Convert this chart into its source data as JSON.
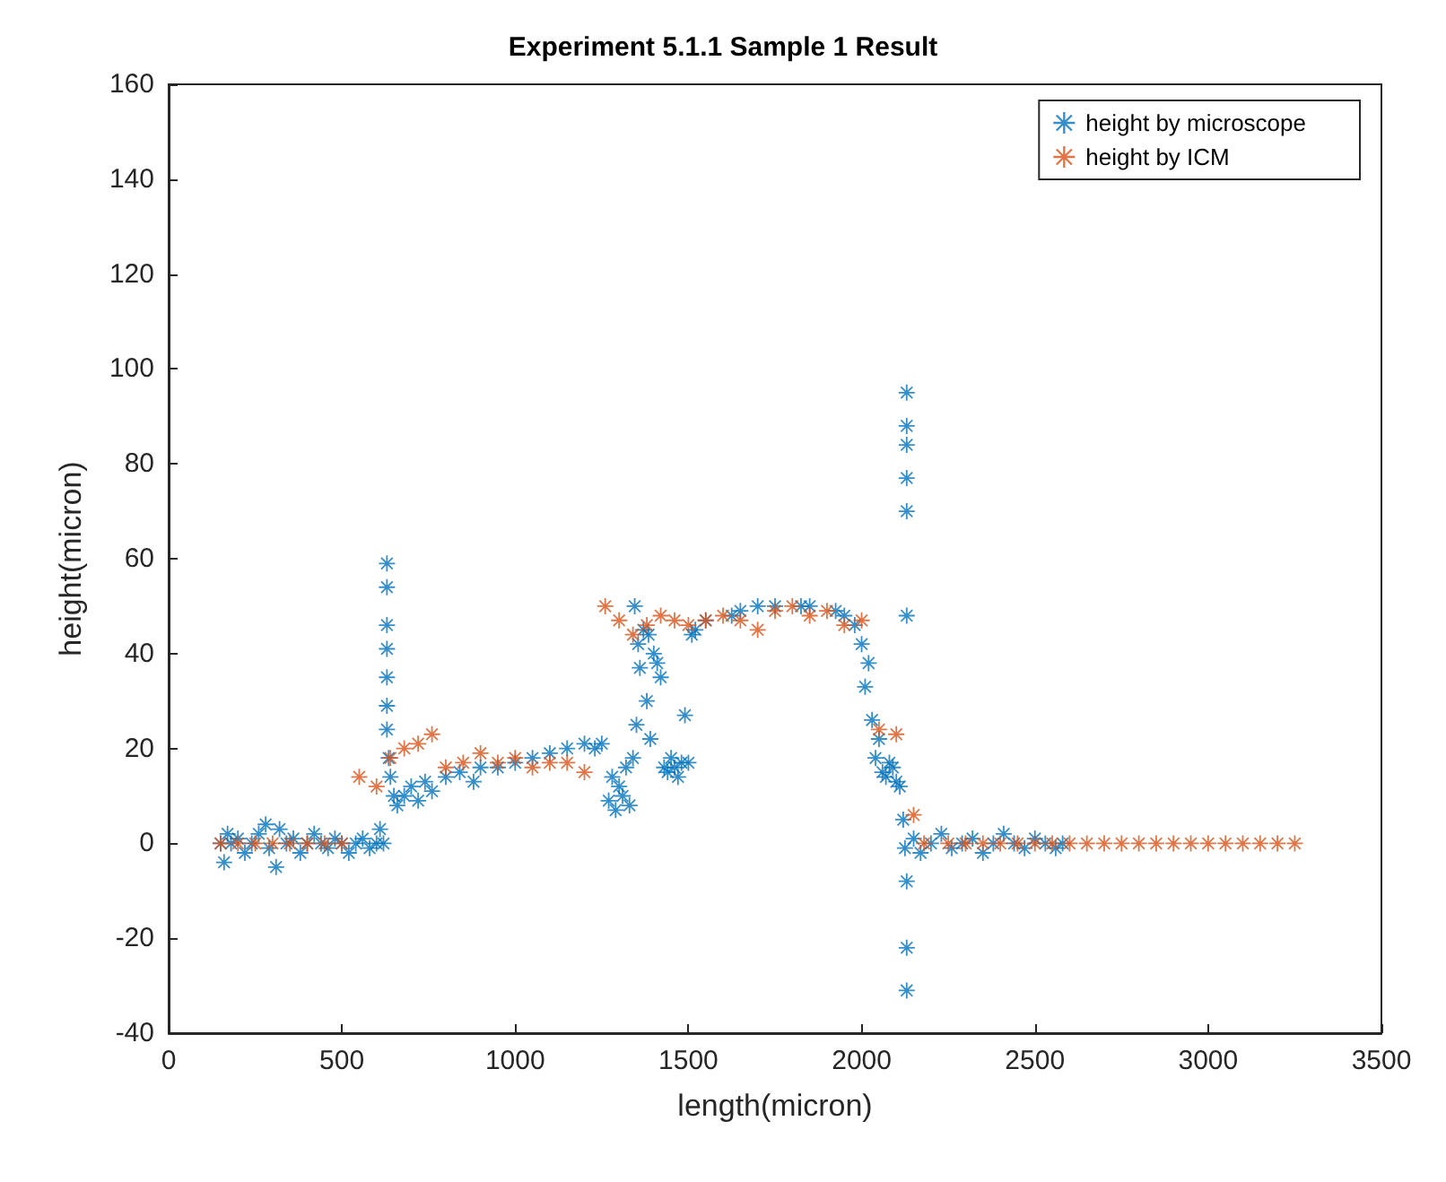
{
  "chart_data": {
    "type": "scatter",
    "title": "Experiment 5.1.1 Sample 1 Result",
    "xlabel": "length(micron)",
    "ylabel": "height(micron)",
    "xlim": [
      0,
      3500
    ],
    "xticks": [
      0,
      500,
      1000,
      1500,
      2000,
      2500,
      3000,
      3500
    ],
    "ylim": [
      -40,
      160
    ],
    "yticks": [
      -40,
      -20,
      0,
      20,
      40,
      60,
      80,
      100,
      120,
      140,
      160
    ],
    "grid": false,
    "legend": "top right",
    "marker": "star",
    "series": [
      {
        "name": "height by microscope",
        "color": "#0072bd",
        "x": [
          150,
          160,
          170,
          180,
          200,
          220,
          240,
          260,
          280,
          290,
          310,
          320,
          340,
          360,
          380,
          400,
          420,
          440,
          460,
          480,
          500,
          520,
          540,
          560,
          580,
          600,
          610,
          620,
          630,
          630,
          630,
          630,
          630,
          630,
          630,
          635,
          640,
          650,
          660,
          680,
          700,
          720,
          740,
          760,
          800,
          840,
          880,
          900,
          950,
          1000,
          1050,
          1100,
          1150,
          1200,
          1230,
          1250,
          1270,
          1280,
          1290,
          1300,
          1310,
          1320,
          1330,
          1340,
          1345,
          1350,
          1355,
          1360,
          1370,
          1380,
          1385,
          1390,
          1400,
          1410,
          1420,
          1430,
          1440,
          1450,
          1460,
          1470,
          1480,
          1490,
          1500,
          1510,
          1520,
          1550,
          1625,
          1650,
          1700,
          1750,
          1825,
          1850,
          1925,
          1950,
          1980,
          2000,
          2010,
          2020,
          2030,
          2040,
          2050,
          2060,
          2070,
          2080,
          2090,
          2100,
          2110,
          2120,
          2125,
          2130,
          2130,
          2130,
          2130,
          2130,
          2130,
          2130,
          2130,
          2130,
          2150,
          2170,
          2200,
          2230,
          2260,
          2290,
          2320,
          2350,
          2380,
          2410,
          2440,
          2470,
          2500,
          2530,
          2560,
          2580
        ],
        "values": [
          0,
          -4,
          2,
          0,
          1,
          -2,
          0,
          2,
          4,
          -1,
          -5,
          3,
          0,
          1,
          -2,
          0,
          2,
          0,
          -1,
          1,
          0,
          -2,
          0,
          1,
          -1,
          0,
          3,
          0,
          59,
          54,
          46,
          41,
          35,
          29,
          24,
          18,
          14,
          10,
          8,
          10,
          12,
          9,
          13,
          11,
          14,
          15,
          13,
          16,
          16,
          17,
          18,
          19,
          20,
          21,
          20,
          21,
          9,
          14,
          7,
          12,
          10,
          16,
          8,
          18,
          50,
          25,
          42,
          37,
          45,
          30,
          44,
          22,
          40,
          38,
          35,
          16,
          15,
          18,
          16,
          14,
          17,
          27,
          17,
          44,
          45,
          47,
          48,
          49,
          50,
          50,
          50,
          50,
          49,
          48,
          46,
          42,
          33,
          38,
          26,
          18,
          22,
          15,
          14,
          17,
          16,
          13,
          12,
          5,
          -1,
          95,
          88,
          84,
          77,
          70,
          48,
          -8,
          -22,
          -31,
          1,
          -2,
          0,
          2,
          -1,
          0,
          1,
          -2,
          0,
          2,
          0,
          -1,
          1,
          0,
          -1,
          0
        ]
      },
      {
        "name": "height by ICM",
        "color": "#d95319",
        "x": [
          150,
          200,
          250,
          300,
          350,
          400,
          450,
          500,
          550,
          600,
          640,
          680,
          720,
          760,
          800,
          850,
          900,
          950,
          1000,
          1050,
          1100,
          1150,
          1200,
          1260,
          1300,
          1340,
          1380,
          1420,
          1460,
          1500,
          1550,
          1600,
          1650,
          1700,
          1750,
          1800,
          1850,
          1900,
          1950,
          2000,
          2050,
          2100,
          2150,
          2180,
          2250,
          2300,
          2350,
          2400,
          2450,
          2500,
          2550,
          2600,
          2650,
          2700,
          2750,
          2800,
          2850,
          2900,
          2950,
          3000,
          3050,
          3100,
          3150,
          3200,
          3250
        ],
        "values": [
          0,
          0,
          0,
          0,
          0,
          0,
          0,
          0,
          14,
          12,
          18,
          20,
          21,
          23,
          16,
          17,
          19,
          17,
          18,
          16,
          17,
          17,
          15,
          50,
          47,
          44,
          46,
          48,
          47,
          46,
          47,
          48,
          47,
          45,
          49,
          50,
          48,
          49,
          46,
          47,
          24,
          23,
          6,
          0,
          0,
          0,
          0,
          0,
          0,
          0,
          0,
          0,
          0,
          0,
          0,
          0,
          0,
          0,
          0,
          0,
          0,
          0,
          0,
          0,
          0
        ]
      }
    ]
  }
}
